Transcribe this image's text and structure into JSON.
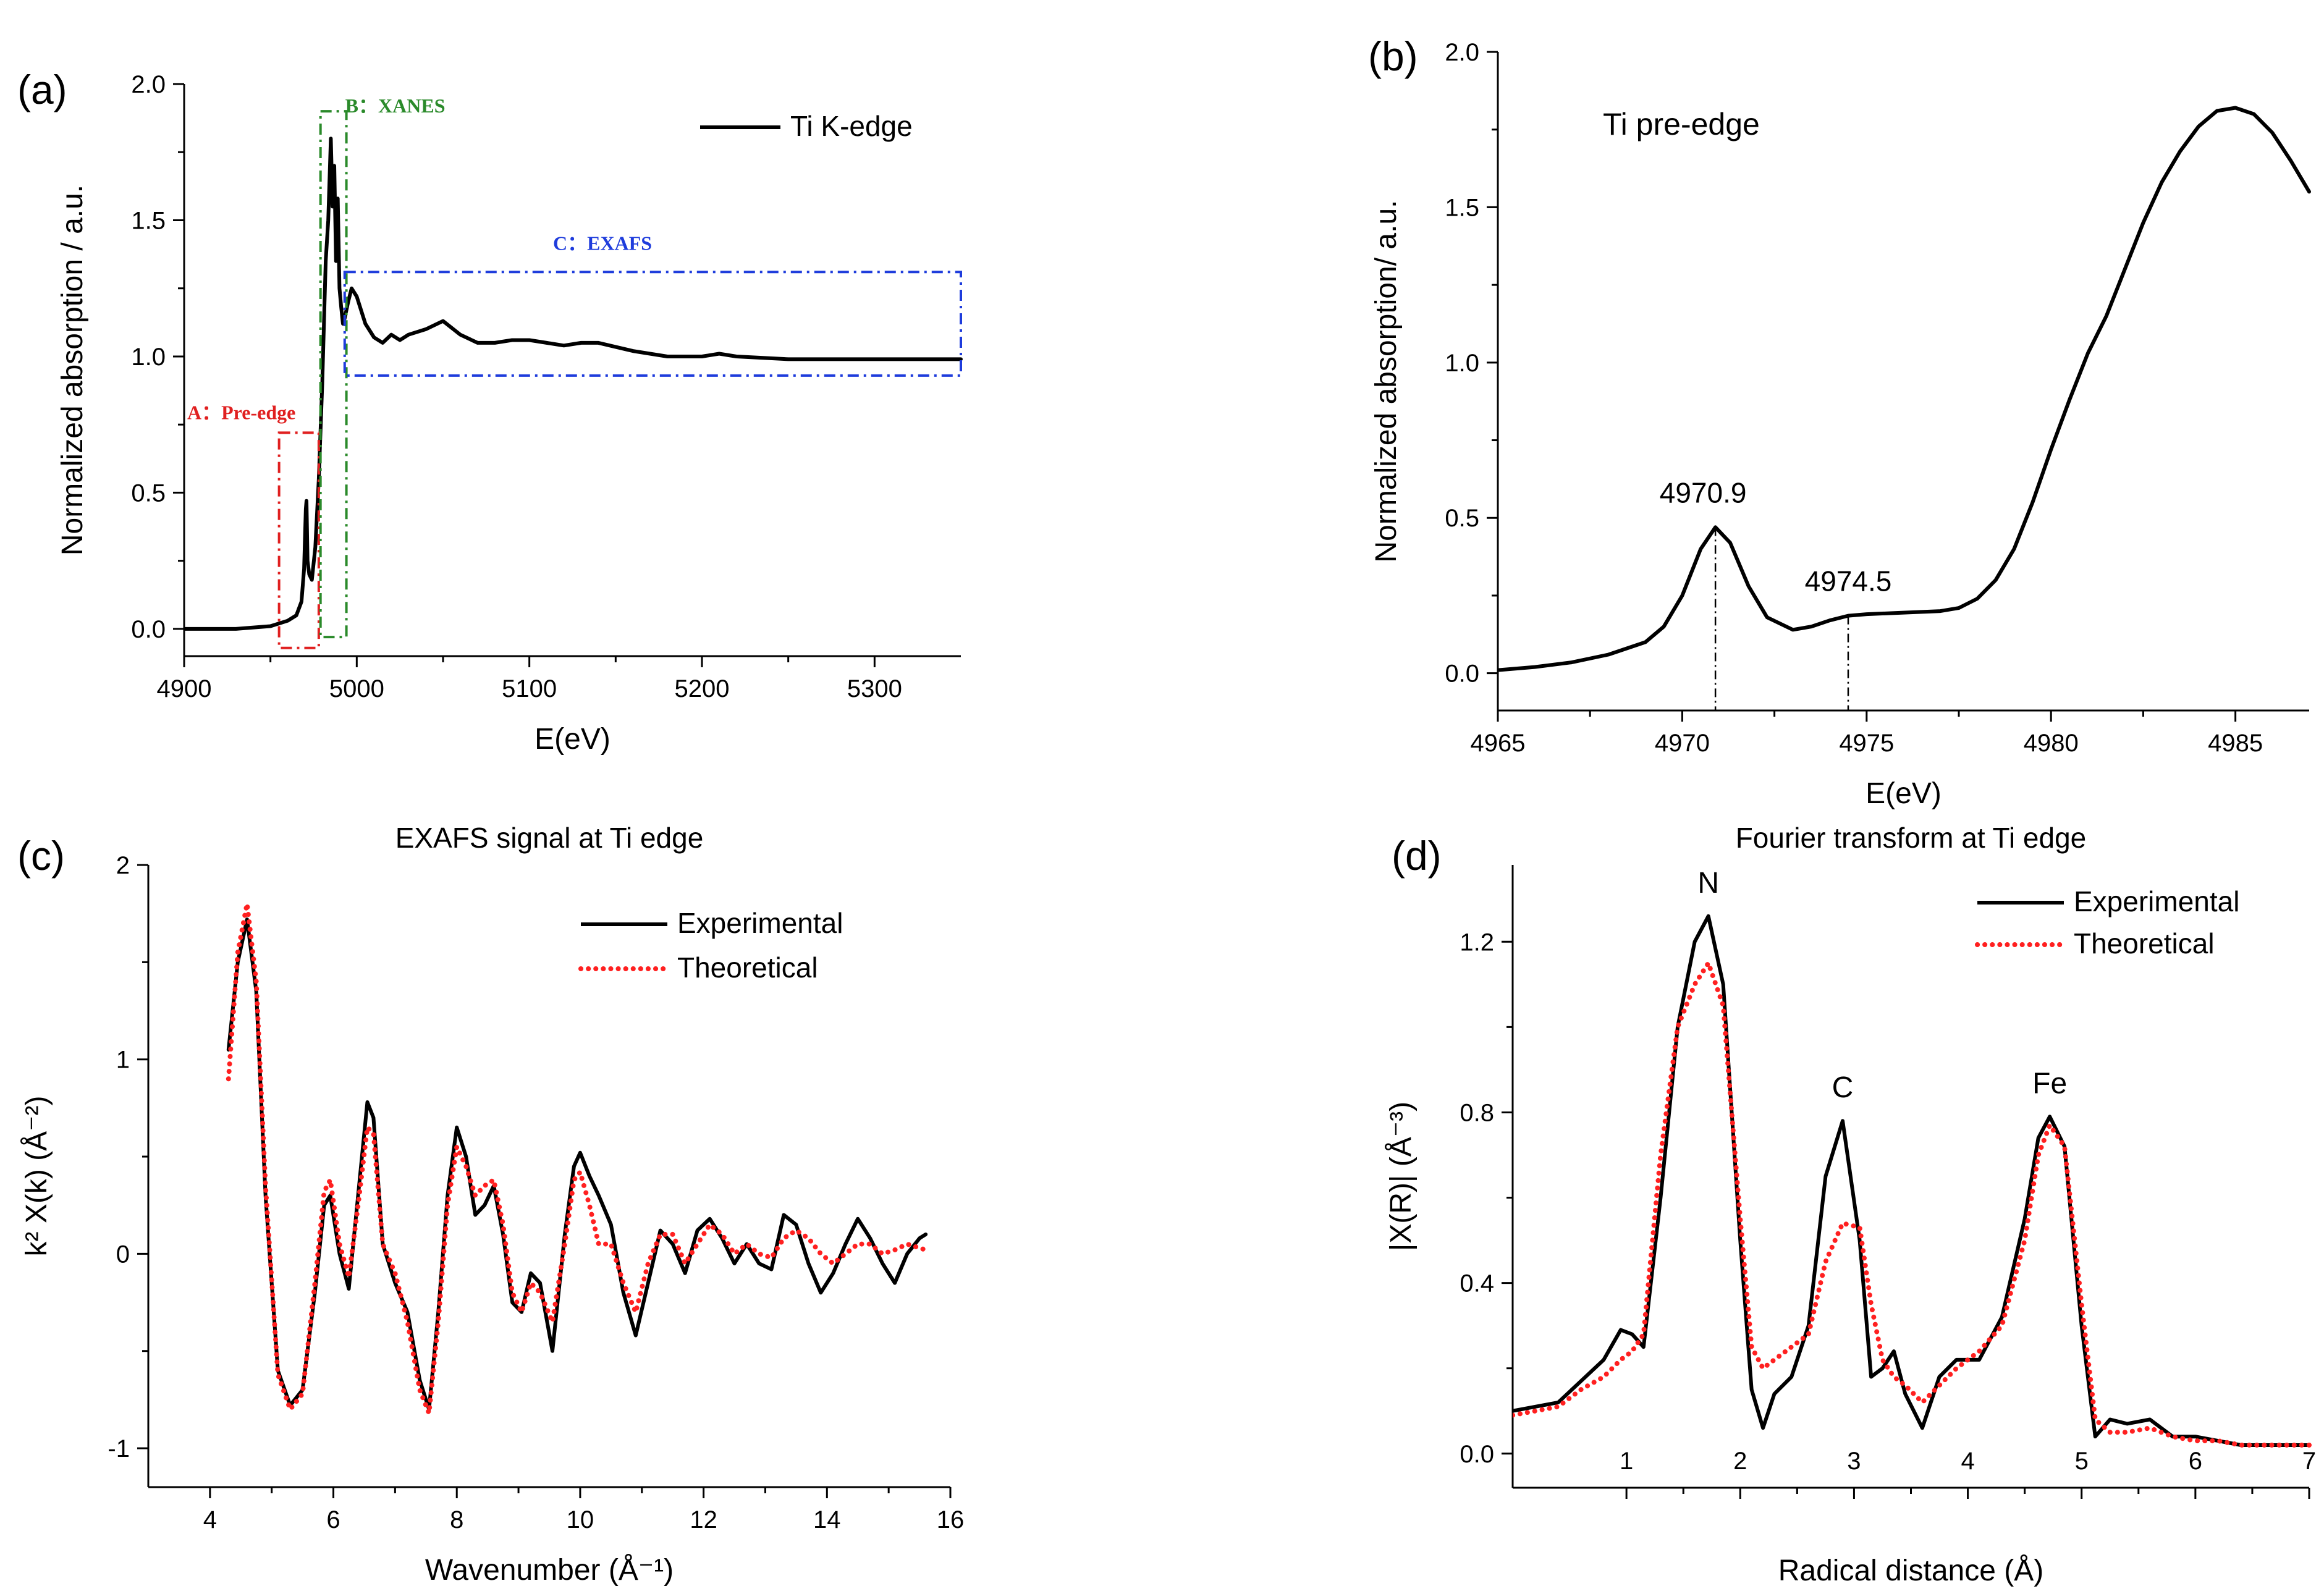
{
  "chart_data": [
    {
      "id": "a",
      "type": "line",
      "panel_label": "(a)",
      "title": "",
      "xlabel": "E(eV)",
      "ylabel": "Normalized absorption / a.u.",
      "xlim": [
        4900,
        5350
      ],
      "ylim": [
        -0.1,
        2.0
      ],
      "xticks": [
        4900,
        5000,
        5100,
        5200,
        5300
      ],
      "xtick_labels": [
        "4900",
        "5000",
        "5100",
        "5200",
        "5300"
      ],
      "yticks": [
        0.0,
        0.5,
        1.0,
        1.5,
        2.0
      ],
      "ytick_labels": [
        "0.0",
        "0.5",
        "1.0",
        "1.5",
        "2.0"
      ],
      "legend": {
        "placement": "top-right",
        "entries": [
          {
            "name": "Ti K-edge",
            "style": "solid",
            "color": "#000000"
          }
        ]
      },
      "series": [
        {
          "name": "Ti K-edge",
          "style": "solid",
          "color": "#000000",
          "x": [
            4900,
            4930,
            4950,
            4960,
            4965,
            4968,
            4969.5,
            4970.5,
            4970.9,
            4971.5,
            4972.5,
            4974,
            4976,
            4978,
            4980,
            4982,
            4983.5,
            4985,
            4986,
            4987,
            4988,
            4989,
            4990,
            4991,
            4992,
            4993,
            4995,
            4997,
            5000,
            5005,
            5010,
            5015,
            5020,
            5025,
            5030,
            5040,
            5050,
            5060,
            5070,
            5080,
            5090,
            5100,
            5110,
            5120,
            5130,
            5140,
            5160,
            5180,
            5200,
            5210,
            5220,
            5250,
            5300,
            5350
          ],
          "y": [
            0.0,
            0.0,
            0.01,
            0.03,
            0.05,
            0.1,
            0.22,
            0.44,
            0.47,
            0.25,
            0.2,
            0.18,
            0.3,
            0.55,
            0.9,
            1.35,
            1.5,
            1.8,
            1.55,
            1.7,
            1.35,
            1.58,
            1.25,
            1.18,
            1.12,
            1.14,
            1.2,
            1.25,
            1.22,
            1.12,
            1.07,
            1.05,
            1.08,
            1.06,
            1.08,
            1.1,
            1.13,
            1.08,
            1.05,
            1.05,
            1.06,
            1.06,
            1.05,
            1.04,
            1.05,
            1.05,
            1.02,
            1.0,
            1.0,
            1.01,
            1.0,
            0.99,
            0.99,
            0.99
          ]
        }
      ],
      "annotations": [
        {
          "id": "A",
          "text": "A：Pre-edge",
          "color": "#e02020",
          "style": "dash-dot",
          "x_range": [
            4955,
            4978
          ],
          "y_range": [
            -0.07,
            0.72
          ]
        },
        {
          "id": "B",
          "text": "B：XANES",
          "color": "#2a8a2a",
          "style": "dash-dot",
          "x_range": [
            4979,
            4994
          ],
          "y_range": [
            -0.03,
            1.9
          ]
        },
        {
          "id": "C",
          "text": "C：EXAFS",
          "color": "#1e3cdc",
          "style": "dash-dot",
          "x_range": [
            4993,
            5350
          ],
          "y_range": [
            0.93,
            1.31
          ]
        }
      ]
    },
    {
      "id": "b",
      "type": "line",
      "panel_label": "(b)",
      "title": "",
      "inner_text": "Ti pre-edge",
      "xlabel": "E(eV)",
      "ylabel": "Normalized absorption/ a.u.",
      "xlim": [
        4965,
        4987
      ],
      "ylim": [
        -0.12,
        2.0
      ],
      "xticks": [
        4965,
        4970,
        4975,
        4980,
        4985
      ],
      "xtick_labels": [
        "4965",
        "4970",
        "4975",
        "4980",
        "4985"
      ],
      "yticks": [
        0.0,
        0.5,
        1.0,
        1.5,
        2.0
      ],
      "ytick_labels": [
        "0.0",
        "0.5",
        "1.0",
        "1.5",
        "2.0"
      ],
      "series": [
        {
          "name": "Ti pre-edge",
          "style": "solid",
          "color": "#000000",
          "x": [
            4965,
            4966,
            4967,
            4968,
            4969,
            4969.5,
            4970,
            4970.5,
            4970.9,
            4971.3,
            4971.8,
            4972.3,
            4973,
            4973.5,
            4974,
            4974.5,
            4975,
            4976,
            4977,
            4977.5,
            4978,
            4978.5,
            4979,
            4979.5,
            4980,
            4980.5,
            4981,
            4981.5,
            4982,
            4982.5,
            4983,
            4983.5,
            4984,
            4984.5,
            4985,
            4985.5,
            4986,
            4986.5,
            4987
          ],
          "y": [
            0.01,
            0.02,
            0.035,
            0.06,
            0.1,
            0.15,
            0.25,
            0.4,
            0.47,
            0.42,
            0.28,
            0.18,
            0.14,
            0.15,
            0.17,
            0.185,
            0.19,
            0.195,
            0.2,
            0.21,
            0.24,
            0.3,
            0.4,
            0.55,
            0.72,
            0.88,
            1.03,
            1.15,
            1.3,
            1.45,
            1.58,
            1.68,
            1.76,
            1.81,
            1.82,
            1.8,
            1.74,
            1.65,
            1.55
          ]
        }
      ],
      "annotations": [
        {
          "text": "4970.9",
          "x": 4970.9,
          "y": 0.47,
          "dropline": true
        },
        {
          "text": "4974.5",
          "x": 4974.5,
          "y": 0.185,
          "dropline": true
        }
      ]
    },
    {
      "id": "c",
      "type": "line",
      "panel_label": "(c)",
      "title": "EXAFS signal at Ti edge",
      "xlabel": "Wavenumber (Å⁻¹)",
      "ylabel": "k² X(k) (Å⁻²)",
      "xlim": [
        3,
        16
      ],
      "ylim": [
        -1.2,
        2.0
      ],
      "xticks": [
        4,
        6,
        8,
        10,
        12,
        14,
        16
      ],
      "xtick_labels": [
        "4",
        "6",
        "8",
        "10",
        "12",
        "14",
        "16"
      ],
      "yticks": [
        -1,
        0,
        1,
        2
      ],
      "ytick_labels": [
        "-1",
        "0",
        "1",
        "2"
      ],
      "legend": {
        "placement": "top-right",
        "entries": [
          {
            "name": "Experimental",
            "style": "solid",
            "color": "#000000"
          },
          {
            "name": "Theoretical",
            "style": "dotted",
            "color": "#ff2020"
          }
        ]
      },
      "series": [
        {
          "name": "Experimental",
          "style": "solid",
          "color": "#000000",
          "x": [
            4.3,
            4.45,
            4.6,
            4.75,
            4.9,
            5.1,
            5.3,
            5.5,
            5.7,
            5.85,
            5.95,
            6.1,
            6.25,
            6.4,
            6.55,
            6.65,
            6.8,
            7.0,
            7.2,
            7.4,
            7.55,
            7.7,
            7.85,
            8.0,
            8.15,
            8.3,
            8.45,
            8.6,
            8.75,
            8.9,
            9.05,
            9.2,
            9.35,
            9.55,
            9.75,
            9.9,
            10.0,
            10.15,
            10.3,
            10.5,
            10.7,
            10.9,
            11.1,
            11.3,
            11.5,
            11.7,
            11.9,
            12.1,
            12.3,
            12.5,
            12.7,
            12.9,
            13.1,
            13.3,
            13.5,
            13.7,
            13.9,
            14.1,
            14.3,
            14.5,
            14.7,
            14.9,
            15.1,
            15.3,
            15.5,
            15.6
          ],
          "y": [
            1.05,
            1.5,
            1.72,
            1.35,
            0.3,
            -0.6,
            -0.78,
            -0.7,
            -0.2,
            0.25,
            0.3,
            0.0,
            -0.18,
            0.3,
            0.78,
            0.7,
            0.05,
            -0.15,
            -0.3,
            -0.65,
            -0.8,
            -0.3,
            0.3,
            0.65,
            0.5,
            0.2,
            0.25,
            0.35,
            0.1,
            -0.25,
            -0.3,
            -0.1,
            -0.15,
            -0.5,
            0.1,
            0.45,
            0.52,
            0.4,
            0.3,
            0.15,
            -0.2,
            -0.42,
            -0.15,
            0.12,
            0.05,
            -0.1,
            0.12,
            0.18,
            0.08,
            -0.05,
            0.05,
            -0.05,
            -0.08,
            0.2,
            0.15,
            -0.05,
            -0.2,
            -0.1,
            0.05,
            0.18,
            0.08,
            -0.05,
            -0.15,
            0.0,
            0.08,
            0.1
          ]
        },
        {
          "name": "Theoretical",
          "style": "dotted",
          "color": "#ff2020",
          "x": [
            4.3,
            4.45,
            4.6,
            4.75,
            4.9,
            5.1,
            5.3,
            5.5,
            5.7,
            5.85,
            5.95,
            6.1,
            6.25,
            6.4,
            6.55,
            6.65,
            6.8,
            7.0,
            7.2,
            7.4,
            7.55,
            7.7,
            7.85,
            8.0,
            8.15,
            8.3,
            8.45,
            8.6,
            8.75,
            8.9,
            9.05,
            9.2,
            9.35,
            9.55,
            9.75,
            9.9,
            10.0,
            10.15,
            10.3,
            10.5,
            10.7,
            10.9,
            11.1,
            11.3,
            11.5,
            11.7,
            11.9,
            12.1,
            12.3,
            12.5,
            12.7,
            12.9,
            13.1,
            13.3,
            13.5,
            13.7,
            13.9,
            14.1,
            14.3,
            14.5,
            14.7,
            14.9,
            15.1,
            15.3,
            15.5,
            15.6
          ],
          "y": [
            0.9,
            1.55,
            1.8,
            1.4,
            0.35,
            -0.62,
            -0.8,
            -0.72,
            -0.15,
            0.32,
            0.38,
            0.05,
            -0.12,
            0.25,
            0.65,
            0.62,
            0.05,
            -0.1,
            -0.35,
            -0.7,
            -0.82,
            -0.35,
            0.25,
            0.55,
            0.45,
            0.3,
            0.35,
            0.38,
            0.15,
            -0.2,
            -0.3,
            -0.15,
            -0.2,
            -0.35,
            0.05,
            0.38,
            0.42,
            0.25,
            0.05,
            0.05,
            -0.15,
            -0.3,
            -0.05,
            0.1,
            0.1,
            -0.05,
            0.05,
            0.15,
            0.1,
            0.0,
            0.05,
            0.0,
            -0.02,
            0.08,
            0.12,
            0.08,
            0.0,
            -0.05,
            0.0,
            0.05,
            0.05,
            0.0,
            0.02,
            0.05,
            0.03,
            0.02
          ]
        }
      ]
    },
    {
      "id": "d",
      "type": "line",
      "panel_label": "(d)",
      "title": "Fourier transform at Ti edge",
      "xlabel": "Radical distance (Å)",
      "ylabel": "|X(R)| (Å⁻³)",
      "xlim": [
        0,
        7
      ],
      "ylim": [
        -0.08,
        1.38
      ],
      "xticks": [
        1,
        2,
        3,
        4,
        5,
        6,
        7
      ],
      "xtick_labels": [
        "1",
        "2",
        "3",
        "4",
        "5",
        "6",
        "7"
      ],
      "yticks": [
        0.0,
        0.4,
        0.8,
        1.2
      ],
      "ytick_labels": [
        "0.0",
        "0.4",
        "0.8",
        "1.2"
      ],
      "legend": {
        "placement": "top-right",
        "entries": [
          {
            "name": "Experimental",
            "style": "solid",
            "color": "#000000"
          },
          {
            "name": "Theoretical",
            "style": "dotted",
            "color": "#ff2020"
          }
        ]
      },
      "series": [
        {
          "name": "Experimental",
          "style": "solid",
          "color": "#000000",
          "x": [
            0.0,
            0.2,
            0.4,
            0.6,
            0.8,
            0.95,
            1.05,
            1.15,
            1.3,
            1.45,
            1.6,
            1.72,
            1.85,
            2.0,
            2.1,
            2.2,
            2.3,
            2.45,
            2.6,
            2.75,
            2.9,
            3.05,
            3.15,
            3.25,
            3.35,
            3.45,
            3.6,
            3.75,
            3.9,
            4.1,
            4.3,
            4.5,
            4.62,
            4.72,
            4.85,
            5.0,
            5.12,
            5.25,
            5.4,
            5.6,
            5.8,
            6.0,
            6.2,
            6.4,
            6.6,
            6.8,
            7.0
          ],
          "y": [
            0.1,
            0.11,
            0.12,
            0.17,
            0.22,
            0.29,
            0.28,
            0.25,
            0.6,
            1.0,
            1.2,
            1.26,
            1.1,
            0.5,
            0.15,
            0.06,
            0.14,
            0.18,
            0.3,
            0.65,
            0.78,
            0.5,
            0.18,
            0.2,
            0.24,
            0.14,
            0.06,
            0.18,
            0.22,
            0.22,
            0.32,
            0.55,
            0.74,
            0.79,
            0.72,
            0.3,
            0.04,
            0.08,
            0.07,
            0.08,
            0.04,
            0.04,
            0.03,
            0.02,
            0.02,
            0.02,
            0.02
          ]
        },
        {
          "name": "Theoretical",
          "style": "dotted",
          "color": "#ff2020",
          "x": [
            0.0,
            0.2,
            0.4,
            0.6,
            0.8,
            0.95,
            1.05,
            1.15,
            1.3,
            1.45,
            1.6,
            1.72,
            1.85,
            2.0,
            2.1,
            2.2,
            2.3,
            2.45,
            2.6,
            2.75,
            2.9,
            3.05,
            3.15,
            3.25,
            3.35,
            3.45,
            3.6,
            3.75,
            3.9,
            4.1,
            4.3,
            4.5,
            4.62,
            4.72,
            4.85,
            5.0,
            5.12,
            5.25,
            5.4,
            5.6,
            5.8,
            6.0,
            6.2,
            6.4,
            6.6,
            6.8,
            7.0
          ],
          "y": [
            0.09,
            0.1,
            0.11,
            0.15,
            0.18,
            0.22,
            0.24,
            0.28,
            0.7,
            1.0,
            1.1,
            1.15,
            1.05,
            0.55,
            0.25,
            0.2,
            0.22,
            0.25,
            0.28,
            0.45,
            0.54,
            0.53,
            0.35,
            0.22,
            0.18,
            0.16,
            0.12,
            0.16,
            0.2,
            0.24,
            0.3,
            0.5,
            0.7,
            0.77,
            0.72,
            0.35,
            0.08,
            0.05,
            0.05,
            0.06,
            0.04,
            0.03,
            0.03,
            0.02,
            0.02,
            0.02,
            0.02
          ]
        }
      ],
      "annotations": [
        {
          "text": "N",
          "x": 1.72,
          "y": 1.26
        },
        {
          "text": "C",
          "x": 2.9,
          "y": 0.78
        },
        {
          "text": "Fe",
          "x": 4.72,
          "y": 0.79
        }
      ]
    }
  ]
}
